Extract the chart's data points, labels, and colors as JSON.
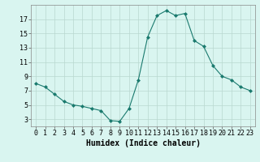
{
  "x": [
    0,
    1,
    2,
    3,
    4,
    5,
    6,
    7,
    8,
    9,
    10,
    11,
    12,
    13,
    14,
    15,
    16,
    17,
    18,
    19,
    20,
    21,
    22,
    23
  ],
  "y": [
    8,
    7.5,
    6.5,
    5.5,
    5,
    4.8,
    4.5,
    4.2,
    2.8,
    2.7,
    4.5,
    8.5,
    14.5,
    17.5,
    18.2,
    17.5,
    17.8,
    14,
    13.2,
    10.5,
    9,
    8.5,
    7.5,
    7
  ],
  "line_color": "#1a7a6e",
  "marker": "D",
  "marker_size": 2,
  "bg_color": "#d9f5f0",
  "grid_color": "#b8d8d0",
  "xlabel": "Humidex (Indice chaleur)",
  "xlabel_fontsize": 7,
  "tick_fontsize": 6,
  "xlim": [
    -0.5,
    23.5
  ],
  "ylim": [
    2,
    19
  ],
  "yticks": [
    3,
    5,
    7,
    9,
    11,
    13,
    15,
    17
  ],
  "xticks": [
    0,
    1,
    2,
    3,
    4,
    5,
    6,
    7,
    8,
    9,
    10,
    11,
    12,
    13,
    14,
    15,
    16,
    17,
    18,
    19,
    20,
    21,
    22,
    23
  ]
}
